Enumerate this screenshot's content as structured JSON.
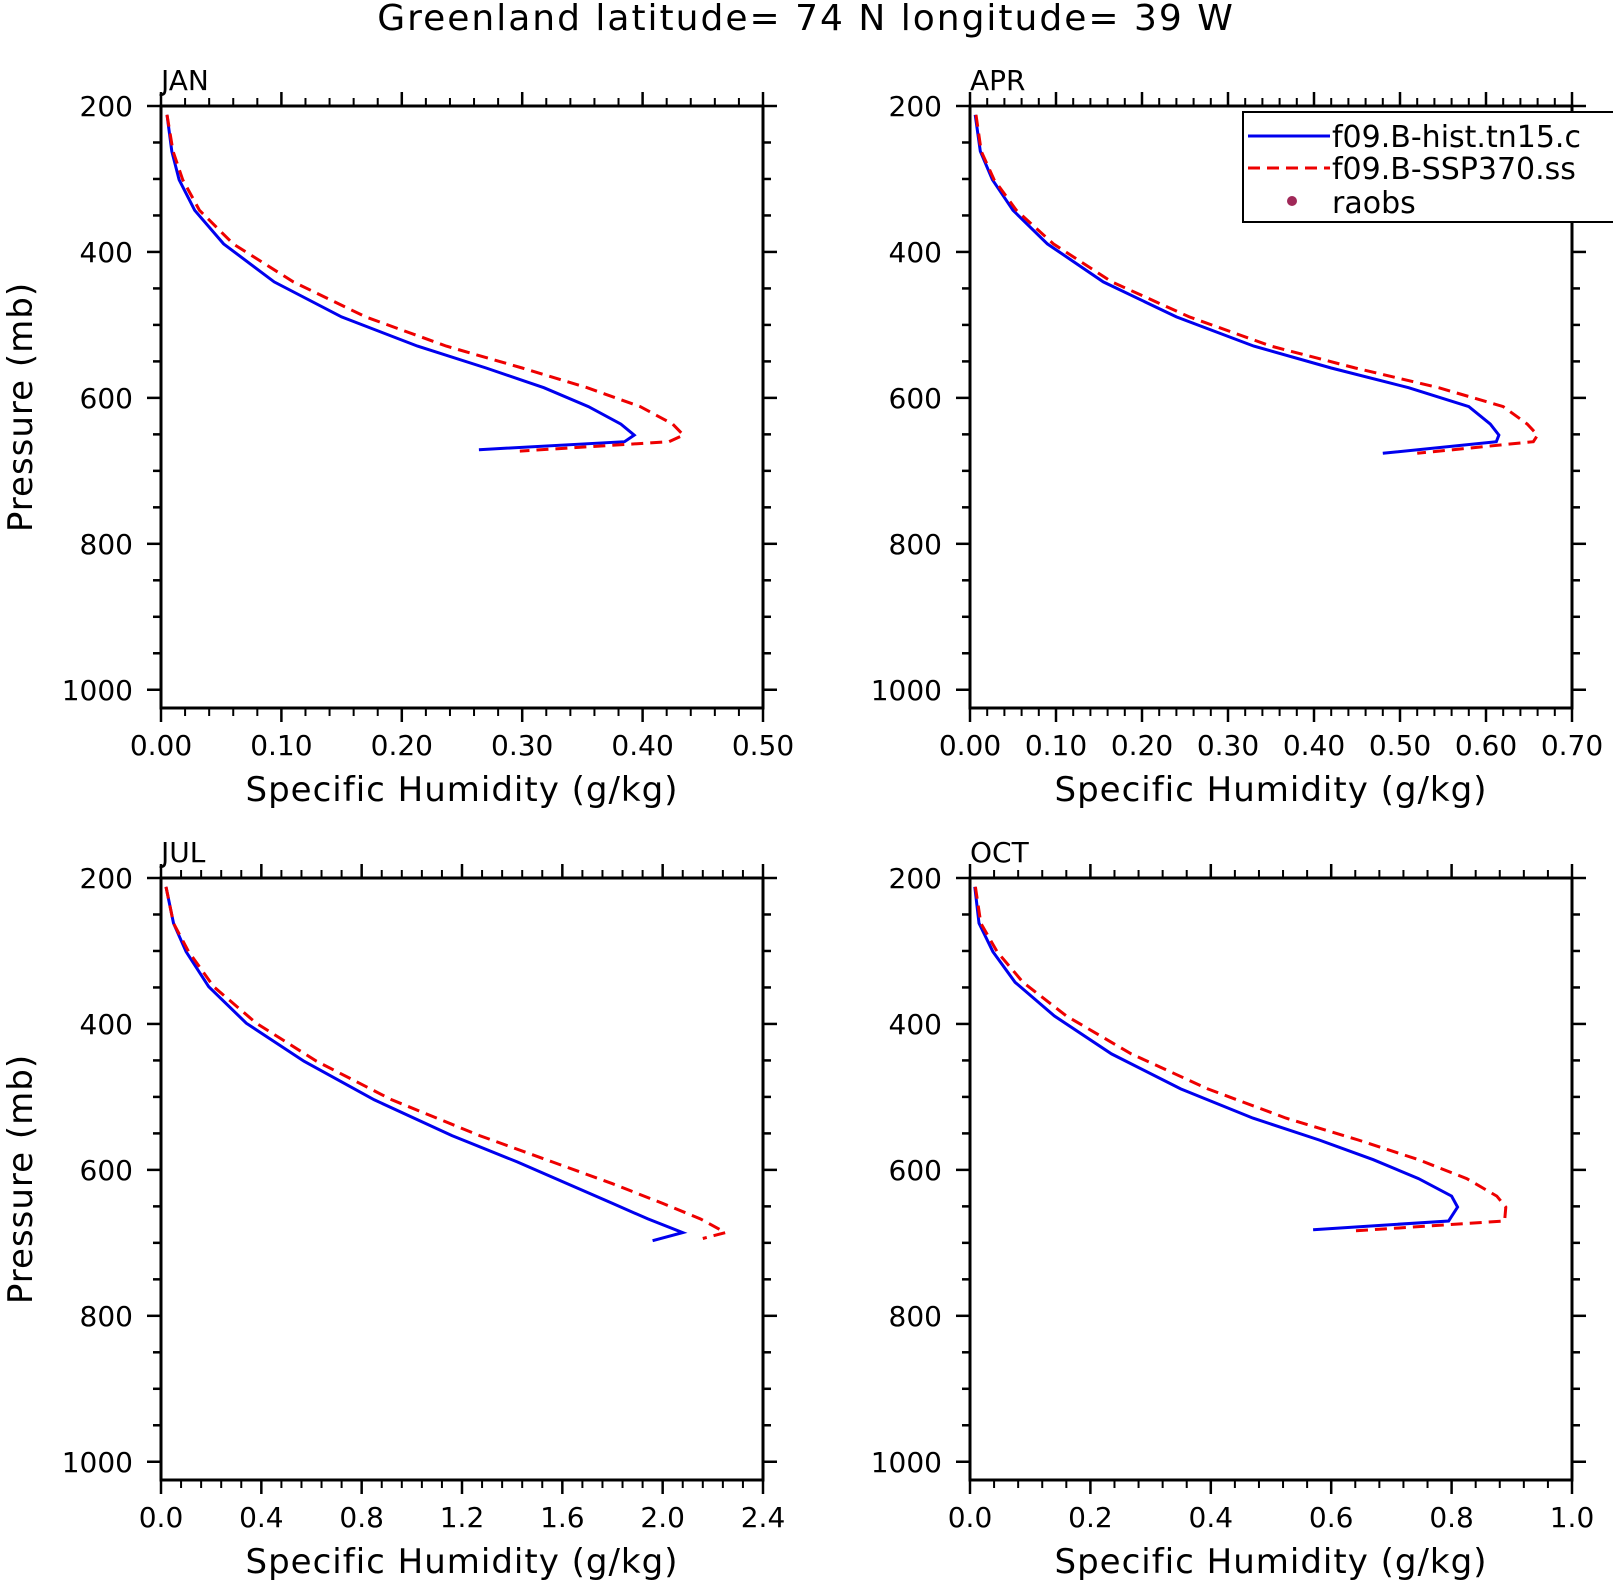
{
  "title": "Greenland  latitude= 74 N longitude= 39 W",
  "colors": {
    "hist": "#0000ee",
    "ssp": "#ee0000",
    "raobs": "#a02858",
    "axes": "#000000"
  },
  "legend": {
    "entries": [
      {
        "label": "f09.B-hist.tn15.c",
        "style": "solid",
        "color": "#0000ee"
      },
      {
        "label": "f09.B-SSP370.ss",
        "style": "dashed",
        "color": "#ee0000"
      },
      {
        "label": "raobs",
        "style": "dot",
        "color": "#a02858"
      }
    ]
  },
  "chart_data": [
    {
      "panel": "JAN",
      "type": "line",
      "xlabel": "Specific Humidity (g/kg)",
      "ylabel": "Pressure (mb)",
      "xlim": [
        0,
        0.5
      ],
      "ylim": [
        1000,
        200
      ],
      "xticks": [
        "0.00",
        "0.10",
        "0.20",
        "0.30",
        "0.40",
        "0.50"
      ],
      "yticks": [
        "200",
        "400",
        "600",
        "800",
        "1000"
      ],
      "series": [
        {
          "name": "f09.B-hist.tn15.c",
          "x": [
            0.005,
            0.009,
            0.015,
            0.028,
            0.052,
            0.094,
            0.15,
            0.213,
            0.27,
            0.318,
            0.355,
            0.382,
            0.393,
            0.385,
            0.264
          ],
          "y": [
            212,
            262,
            301,
            343,
            389,
            441,
            489,
            529,
            559,
            586,
            612,
            636,
            651,
            660,
            671
          ]
        },
        {
          "name": "f09.B-SSP370.ss",
          "x": [
            0.005,
            0.01,
            0.018,
            0.032,
            0.06,
            0.11,
            0.17,
            0.237,
            0.3,
            0.354,
            0.398,
            0.425,
            0.434,
            0.422,
            0.298
          ],
          "y": [
            212,
            262,
            301,
            343,
            389,
            441,
            489,
            529,
            559,
            586,
            612,
            636,
            651,
            660,
            673
          ]
        }
      ]
    },
    {
      "panel": "APR",
      "type": "line",
      "xlabel": "Specific Humidity (g/kg)",
      "ylabel": "",
      "xlim": [
        0,
        0.7
      ],
      "ylim": [
        1000,
        200
      ],
      "xticks": [
        "0.00",
        "0.10",
        "0.20",
        "0.30",
        "0.40",
        "0.50",
        "0.60",
        "0.70"
      ],
      "yticks": [
        "200",
        "400",
        "600",
        "800",
        "1000"
      ],
      "series": [
        {
          "name": "f09.B-hist.tn15.c",
          "x": [
            0.006,
            0.012,
            0.026,
            0.05,
            0.09,
            0.155,
            0.24,
            0.33,
            0.42,
            0.51,
            0.58,
            0.605,
            0.615,
            0.612,
            0.48
          ],
          "y": [
            212,
            262,
            301,
            343,
            389,
            441,
            489,
            529,
            559,
            586,
            612,
            636,
            651,
            660,
            676
          ]
        },
        {
          "name": "f09.B-SSP370.ss",
          "x": [
            0.007,
            0.013,
            0.028,
            0.054,
            0.097,
            0.165,
            0.255,
            0.35,
            0.448,
            0.545,
            0.62,
            0.648,
            0.66,
            0.655,
            0.52
          ],
          "y": [
            212,
            262,
            301,
            343,
            389,
            441,
            489,
            529,
            559,
            586,
            612,
            636,
            651,
            660,
            676
          ]
        }
      ]
    },
    {
      "panel": "JUL",
      "type": "line",
      "xlabel": "Specific Humidity (g/kg)",
      "ylabel": "Pressure (mb)",
      "xlim": [
        0,
        2.4
      ],
      "ylim": [
        1000,
        200
      ],
      "xticks": [
        "0.0",
        "0.4",
        "0.8",
        "1.2",
        "1.6",
        "2.0",
        "2.4"
      ],
      "yticks": [
        "200",
        "400",
        "600",
        "800",
        "1000"
      ],
      "series": [
        {
          "name": "f09.B-hist.tn15.c",
          "x": [
            0.02,
            0.05,
            0.1,
            0.19,
            0.34,
            0.57,
            0.85,
            1.16,
            1.42,
            1.62,
            1.8,
            1.94,
            2.08,
            1.96
          ],
          "y": [
            212,
            262,
            301,
            349,
            399,
            451,
            504,
            553,
            589,
            619,
            646,
            667,
            686,
            697
          ]
        },
        {
          "name": "f09.B-SSP370.ss",
          "x": [
            0.02,
            0.05,
            0.11,
            0.21,
            0.38,
            0.62,
            0.92,
            1.27,
            1.56,
            1.8,
            2.0,
            2.15,
            2.25,
            2.16
          ],
          "y": [
            212,
            262,
            301,
            349,
            399,
            451,
            504,
            553,
            589,
            619,
            646,
            667,
            686,
            694
          ]
        }
      ]
    },
    {
      "panel": "OCT",
      "type": "line",
      "xlabel": "Specific Humidity (g/kg)",
      "ylabel": "",
      "xlim": [
        0,
        1.0
      ],
      "ylim": [
        1000,
        200
      ],
      "xticks": [
        "0.0",
        "0.2",
        "0.4",
        "0.6",
        "0.8",
        "1.0"
      ],
      "yticks": [
        "200",
        "400",
        "600",
        "800",
        "1000"
      ],
      "series": [
        {
          "name": "f09.B-hist.tn15.c",
          "x": [
            0.008,
            0.015,
            0.038,
            0.075,
            0.14,
            0.235,
            0.35,
            0.47,
            0.58,
            0.67,
            0.745,
            0.8,
            0.81,
            0.795,
            0.57
          ],
          "y": [
            212,
            262,
            301,
            343,
            389,
            441,
            489,
            529,
            559,
            586,
            612,
            636,
            651,
            670,
            682
          ]
        },
        {
          "name": "f09.B-SSP370.ss",
          "x": [
            0.009,
            0.018,
            0.045,
            0.088,
            0.16,
            0.268,
            0.395,
            0.525,
            0.645,
            0.745,
            0.825,
            0.875,
            0.89,
            0.888,
            0.63
          ],
          "y": [
            212,
            262,
            301,
            343,
            389,
            441,
            489,
            529,
            559,
            586,
            612,
            636,
            651,
            670,
            684
          ]
        }
      ]
    }
  ]
}
